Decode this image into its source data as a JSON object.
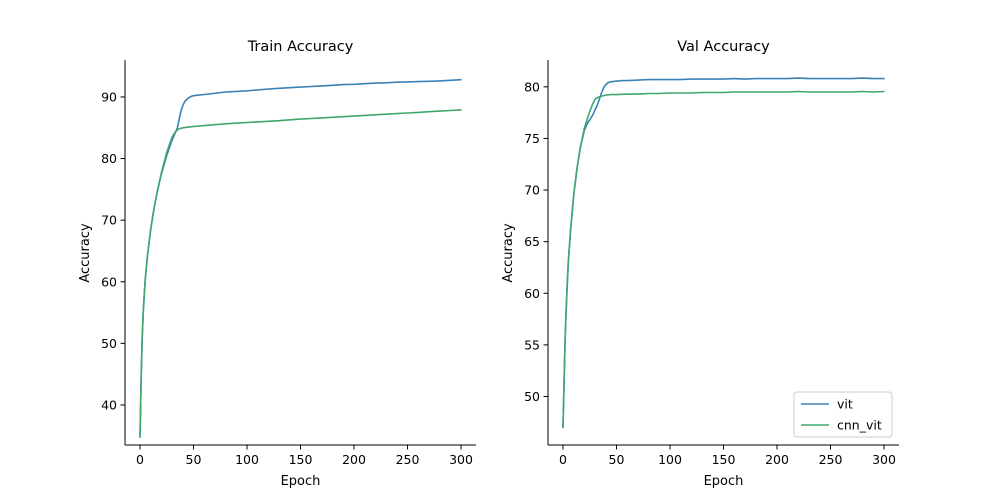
{
  "chart_data": [
    {
      "type": "line",
      "title": "Train Accuracy",
      "xlabel": "Epoch",
      "ylabel": "Accuracy",
      "xlim": [
        -14,
        314
      ],
      "ylim": [
        33.5,
        96
      ],
      "x_ticks": [
        0,
        50,
        100,
        150,
        200,
        250,
        300
      ],
      "y_ticks": [
        40,
        50,
        60,
        70,
        80,
        90
      ],
      "grid": false,
      "legend": null,
      "series": [
        {
          "name": "vit",
          "color": "#3a82b8",
          "x": [
            0,
            1,
            2,
            3,
            4,
            5,
            7,
            10,
            13,
            16,
            20,
            25,
            30,
            35,
            38,
            40,
            42,
            45,
            48,
            50,
            55,
            60,
            70,
            80,
            90,
            100,
            110,
            120,
            130,
            140,
            150,
            160,
            170,
            180,
            190,
            200,
            210,
            220,
            230,
            240,
            250,
            260,
            270,
            280,
            290,
            300
          ],
          "y": [
            34.8,
            44.0,
            50.5,
            55.0,
            58.0,
            60.5,
            64.3,
            68.5,
            71.8,
            74.5,
            77.5,
            80.5,
            83.0,
            85.0,
            87.5,
            88.6,
            89.3,
            89.8,
            90.1,
            90.2,
            90.3,
            90.4,
            90.6,
            90.8,
            90.9,
            91.0,
            91.15,
            91.3,
            91.4,
            91.5,
            91.6,
            91.7,
            91.8,
            91.9,
            92.0,
            92.05,
            92.15,
            92.25,
            92.3,
            92.4,
            92.45,
            92.5,
            92.55,
            92.6,
            92.7,
            92.8
          ]
        },
        {
          "name": "cnn_vit",
          "color": "#3fa66e",
          "x": [
            0,
            1,
            2,
            3,
            4,
            5,
            7,
            10,
            13,
            16,
            20,
            25,
            30,
            33,
            36,
            40,
            45,
            50,
            60,
            70,
            80,
            90,
            100,
            110,
            120,
            130,
            140,
            150,
            160,
            170,
            180,
            190,
            200,
            210,
            220,
            230,
            240,
            250,
            260,
            270,
            280,
            290,
            300
          ],
          "y": [
            34.8,
            44.0,
            50.5,
            55.0,
            58.0,
            60.5,
            64.3,
            68.5,
            71.8,
            74.5,
            77.7,
            81.0,
            83.5,
            84.3,
            84.8,
            85.0,
            85.1,
            85.2,
            85.35,
            85.5,
            85.65,
            85.75,
            85.85,
            85.95,
            86.05,
            86.15,
            86.3,
            86.4,
            86.5,
            86.6,
            86.7,
            86.8,
            86.9,
            87.0,
            87.1,
            87.2,
            87.3,
            87.4,
            87.5,
            87.6,
            87.7,
            87.8,
            87.9
          ]
        }
      ]
    },
    {
      "type": "line",
      "title": "Val Accuracy",
      "xlabel": "Epoch",
      "ylabel": "Accuracy",
      "xlim": [
        -14,
        314
      ],
      "ylim": [
        45.3,
        82.6
      ],
      "x_ticks": [
        0,
        50,
        100,
        150,
        200,
        250,
        300
      ],
      "y_ticks": [
        50,
        55,
        60,
        65,
        70,
        75,
        80
      ],
      "grid": false,
      "legend": "lower right",
      "series": [
        {
          "name": "vit",
          "color": "#3a82b8",
          "x": [
            0,
            1,
            2,
            3,
            4,
            5,
            7,
            10,
            13,
            16,
            20,
            23,
            25,
            28,
            30,
            32,
            34,
            36,
            38,
            40,
            42,
            45,
            50,
            55,
            60,
            70,
            80,
            90,
            100,
            110,
            120,
            130,
            140,
            150,
            160,
            170,
            180,
            190,
            200,
            210,
            220,
            230,
            240,
            250,
            260,
            270,
            280,
            290,
            300
          ],
          "y": [
            47.0,
            51.5,
            55.5,
            58.5,
            61.0,
            63.0,
            66.0,
            69.5,
            72.0,
            74.0,
            75.8,
            76.5,
            76.8,
            77.3,
            77.8,
            78.2,
            78.8,
            79.4,
            79.9,
            80.2,
            80.4,
            80.5,
            80.55,
            80.6,
            80.6,
            80.65,
            80.7,
            80.7,
            80.7,
            80.7,
            80.75,
            80.75,
            80.75,
            80.75,
            80.8,
            80.75,
            80.8,
            80.8,
            80.8,
            80.8,
            80.85,
            80.8,
            80.8,
            80.8,
            80.8,
            80.8,
            80.85,
            80.8,
            80.8
          ]
        },
        {
          "name": "cnn_vit",
          "color": "#3fa66e",
          "x": [
            0,
            1,
            2,
            3,
            4,
            5,
            7,
            10,
            13,
            16,
            20,
            23,
            25,
            28,
            30,
            33,
            36,
            40,
            45,
            50,
            60,
            70,
            80,
            90,
            100,
            110,
            120,
            130,
            140,
            150,
            160,
            170,
            180,
            190,
            200,
            210,
            220,
            230,
            240,
            250,
            260,
            270,
            280,
            290,
            300
          ],
          "y": [
            47.0,
            51.5,
            55.5,
            58.5,
            61.0,
            63.0,
            66.0,
            69.5,
            72.0,
            74.0,
            76.0,
            77.0,
            77.6,
            78.4,
            78.8,
            79.0,
            79.1,
            79.2,
            79.25,
            79.25,
            79.3,
            79.3,
            79.35,
            79.35,
            79.4,
            79.4,
            79.4,
            79.45,
            79.45,
            79.45,
            79.5,
            79.5,
            79.5,
            79.5,
            79.5,
            79.5,
            79.55,
            79.5,
            79.5,
            79.5,
            79.5,
            79.5,
            79.55,
            79.5,
            79.55
          ]
        }
      ]
    }
  ]
}
